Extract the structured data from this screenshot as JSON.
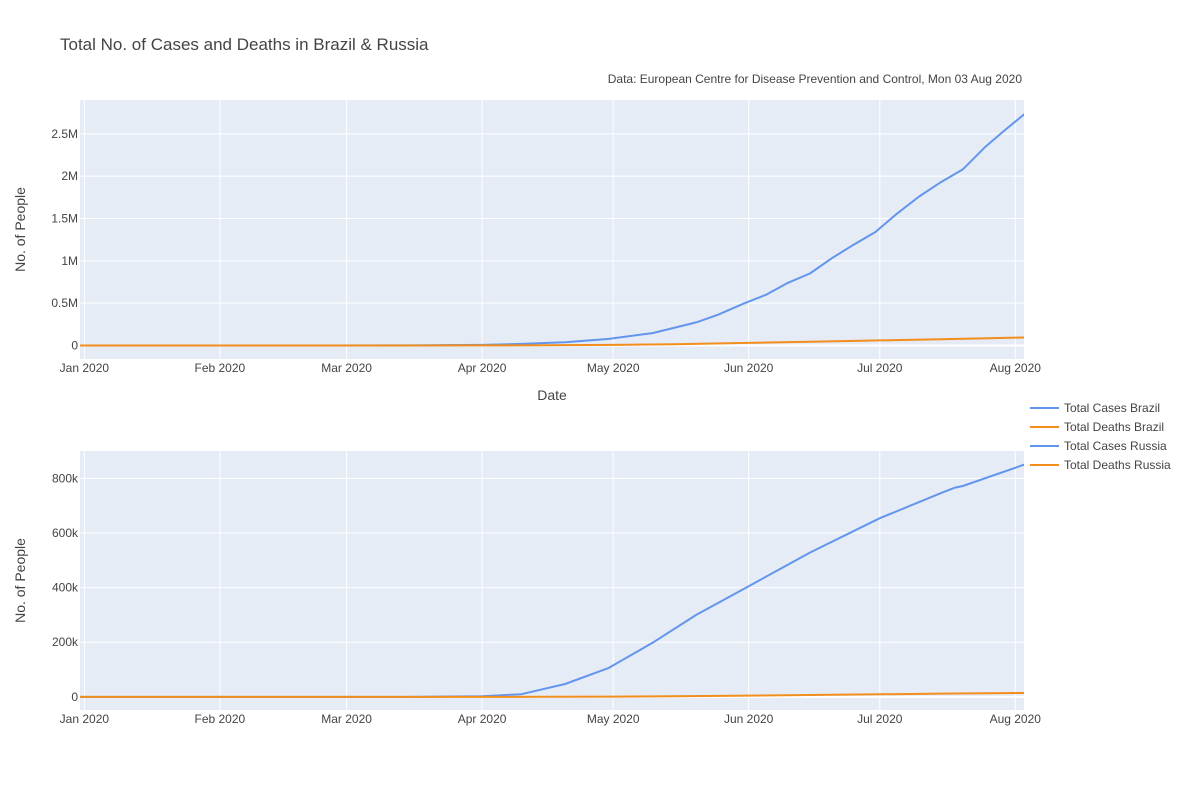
{
  "chart_data": {
    "type": "line",
    "title": "Total No. of Cases and Deaths in Brazil & Russia",
    "subtitle": "Data: European Centre for Disease Prevention and Control, Mon 03 Aug 2020",
    "legend_position": "right",
    "legend": [
      {
        "label": "Total Cases Brazil",
        "color": "#6495ed"
      },
      {
        "label": "Total Deaths Brazil",
        "color": "#f28e1c"
      },
      {
        "label": "Total Cases Russia",
        "color": "#6495ed"
      },
      {
        "label": "Total Deaths Russia",
        "color": "#f28e1c"
      }
    ],
    "x_ticks": [
      {
        "date": "2020-01-01",
        "label": "Jan 2020"
      },
      {
        "date": "2020-02-01",
        "label": "Feb 2020"
      },
      {
        "date": "2020-03-01",
        "label": "Mar 2020"
      },
      {
        "date": "2020-04-01",
        "label": "Apr 2020"
      },
      {
        "date": "2020-05-01",
        "label": "May 2020"
      },
      {
        "date": "2020-06-01",
        "label": "Jun 2020"
      },
      {
        "date": "2020-07-01",
        "label": "Jul 2020"
      },
      {
        "date": "2020-08-01",
        "label": "Aug 2020"
      }
    ],
    "xrange": [
      "2019-12-31",
      "2020-08-03"
    ],
    "subplots": [
      {
        "xlabel": "Date",
        "ylabel": "No. of People",
        "ylim": [
          -160000,
          2900000
        ],
        "y_ticks": [
          {
            "value": 0,
            "label": "0"
          },
          {
            "value": 500000,
            "label": "0.5M"
          },
          {
            "value": 1000000,
            "label": "1M"
          },
          {
            "value": 1500000,
            "label": "1.5M"
          },
          {
            "value": 2000000,
            "label": "2M"
          },
          {
            "value": 2500000,
            "label": "2.5M"
          }
        ],
        "series": [
          {
            "name": "Total Cases Brazil",
            "color": "#6495ed",
            "points": [
              [
                "2019-12-31",
                0
              ],
              [
                "2020-02-26",
                1
              ],
              [
                "2020-03-15",
                200
              ],
              [
                "2020-04-01",
                6800
              ],
              [
                "2020-04-10",
                18000
              ],
              [
                "2020-04-20",
                38000
              ],
              [
                "2020-04-30",
                78000
              ],
              [
                "2020-05-10",
                146000
              ],
              [
                "2020-05-20",
                272000
              ],
              [
                "2020-05-25",
                363000
              ],
              [
                "2020-05-31",
                498000
              ],
              [
                "2020-06-05",
                600000
              ],
              [
                "2020-06-10",
                740000
              ],
              [
                "2020-06-15",
                850000
              ],
              [
                "2020-06-20",
                1030000
              ],
              [
                "2020-06-25",
                1190000
              ],
              [
                "2020-06-30",
                1340000
              ],
              [
                "2020-07-05",
                1560000
              ],
              [
                "2020-07-10",
                1760000
              ],
              [
                "2020-07-15",
                1930000
              ],
              [
                "2020-07-20",
                2080000
              ],
              [
                "2020-07-25",
                2340000
              ],
              [
                "2020-07-30",
                2560000
              ],
              [
                "2020-08-03",
                2730000
              ]
            ]
          },
          {
            "name": "Total Deaths Brazil",
            "color": "#f28e1c",
            "points": [
              [
                "2019-12-31",
                0
              ],
              [
                "2020-03-17",
                0
              ],
              [
                "2020-04-01",
                240
              ],
              [
                "2020-04-15",
                1700
              ],
              [
                "2020-05-01",
                6300
              ],
              [
                "2020-05-15",
                14000
              ],
              [
                "2020-06-01",
                29900
              ],
              [
                "2020-06-15",
                43300
              ],
              [
                "2020-07-01",
                59600
              ],
              [
                "2020-07-15",
                74300
              ],
              [
                "2020-08-03",
                94100
              ]
            ]
          }
        ]
      },
      {
        "xlabel": "",
        "ylabel": "No. of People",
        "ylim": [
          -48000,
          900000
        ],
        "y_ticks": [
          {
            "value": 0,
            "label": "0"
          },
          {
            "value": 200000,
            "label": "200k"
          },
          {
            "value": 400000,
            "label": "400k"
          },
          {
            "value": 600000,
            "label": "600k"
          },
          {
            "value": 800000,
            "label": "800k"
          }
        ],
        "series": [
          {
            "name": "Total Cases Russia",
            "color": "#6495ed",
            "points": [
              [
                "2019-12-31",
                0
              ],
              [
                "2020-03-15",
                60
              ],
              [
                "2020-04-01",
                2300
              ],
              [
                "2020-04-10",
                10000
              ],
              [
                "2020-04-20",
                47000
              ],
              [
                "2020-04-30",
                106000
              ],
              [
                "2020-05-10",
                198000
              ],
              [
                "2020-05-20",
                300000
              ],
              [
                "2020-06-01",
                405000
              ],
              [
                "2020-06-15",
                528000
              ],
              [
                "2020-07-01",
                654000
              ],
              [
                "2020-07-15",
                746000
              ],
              [
                "2020-07-18",
                765000
              ],
              [
                "2020-07-20",
                772000
              ],
              [
                "2020-08-03",
                850000
              ]
            ]
          },
          {
            "name": "Total Deaths Russia",
            "color": "#f28e1c",
            "points": [
              [
                "2019-12-31",
                0
              ],
              [
                "2020-03-20",
                0
              ],
              [
                "2020-04-01",
                17
              ],
              [
                "2020-04-15",
                230
              ],
              [
                "2020-05-01",
                1073
              ],
              [
                "2020-05-15",
                2400
              ],
              [
                "2020-06-01",
                4700
              ],
              [
                "2020-06-15",
                7000
              ],
              [
                "2020-07-01",
                9500
              ],
              [
                "2020-07-15",
                11900
              ],
              [
                "2020-08-03",
                14100
              ]
            ]
          }
        ]
      }
    ]
  }
}
